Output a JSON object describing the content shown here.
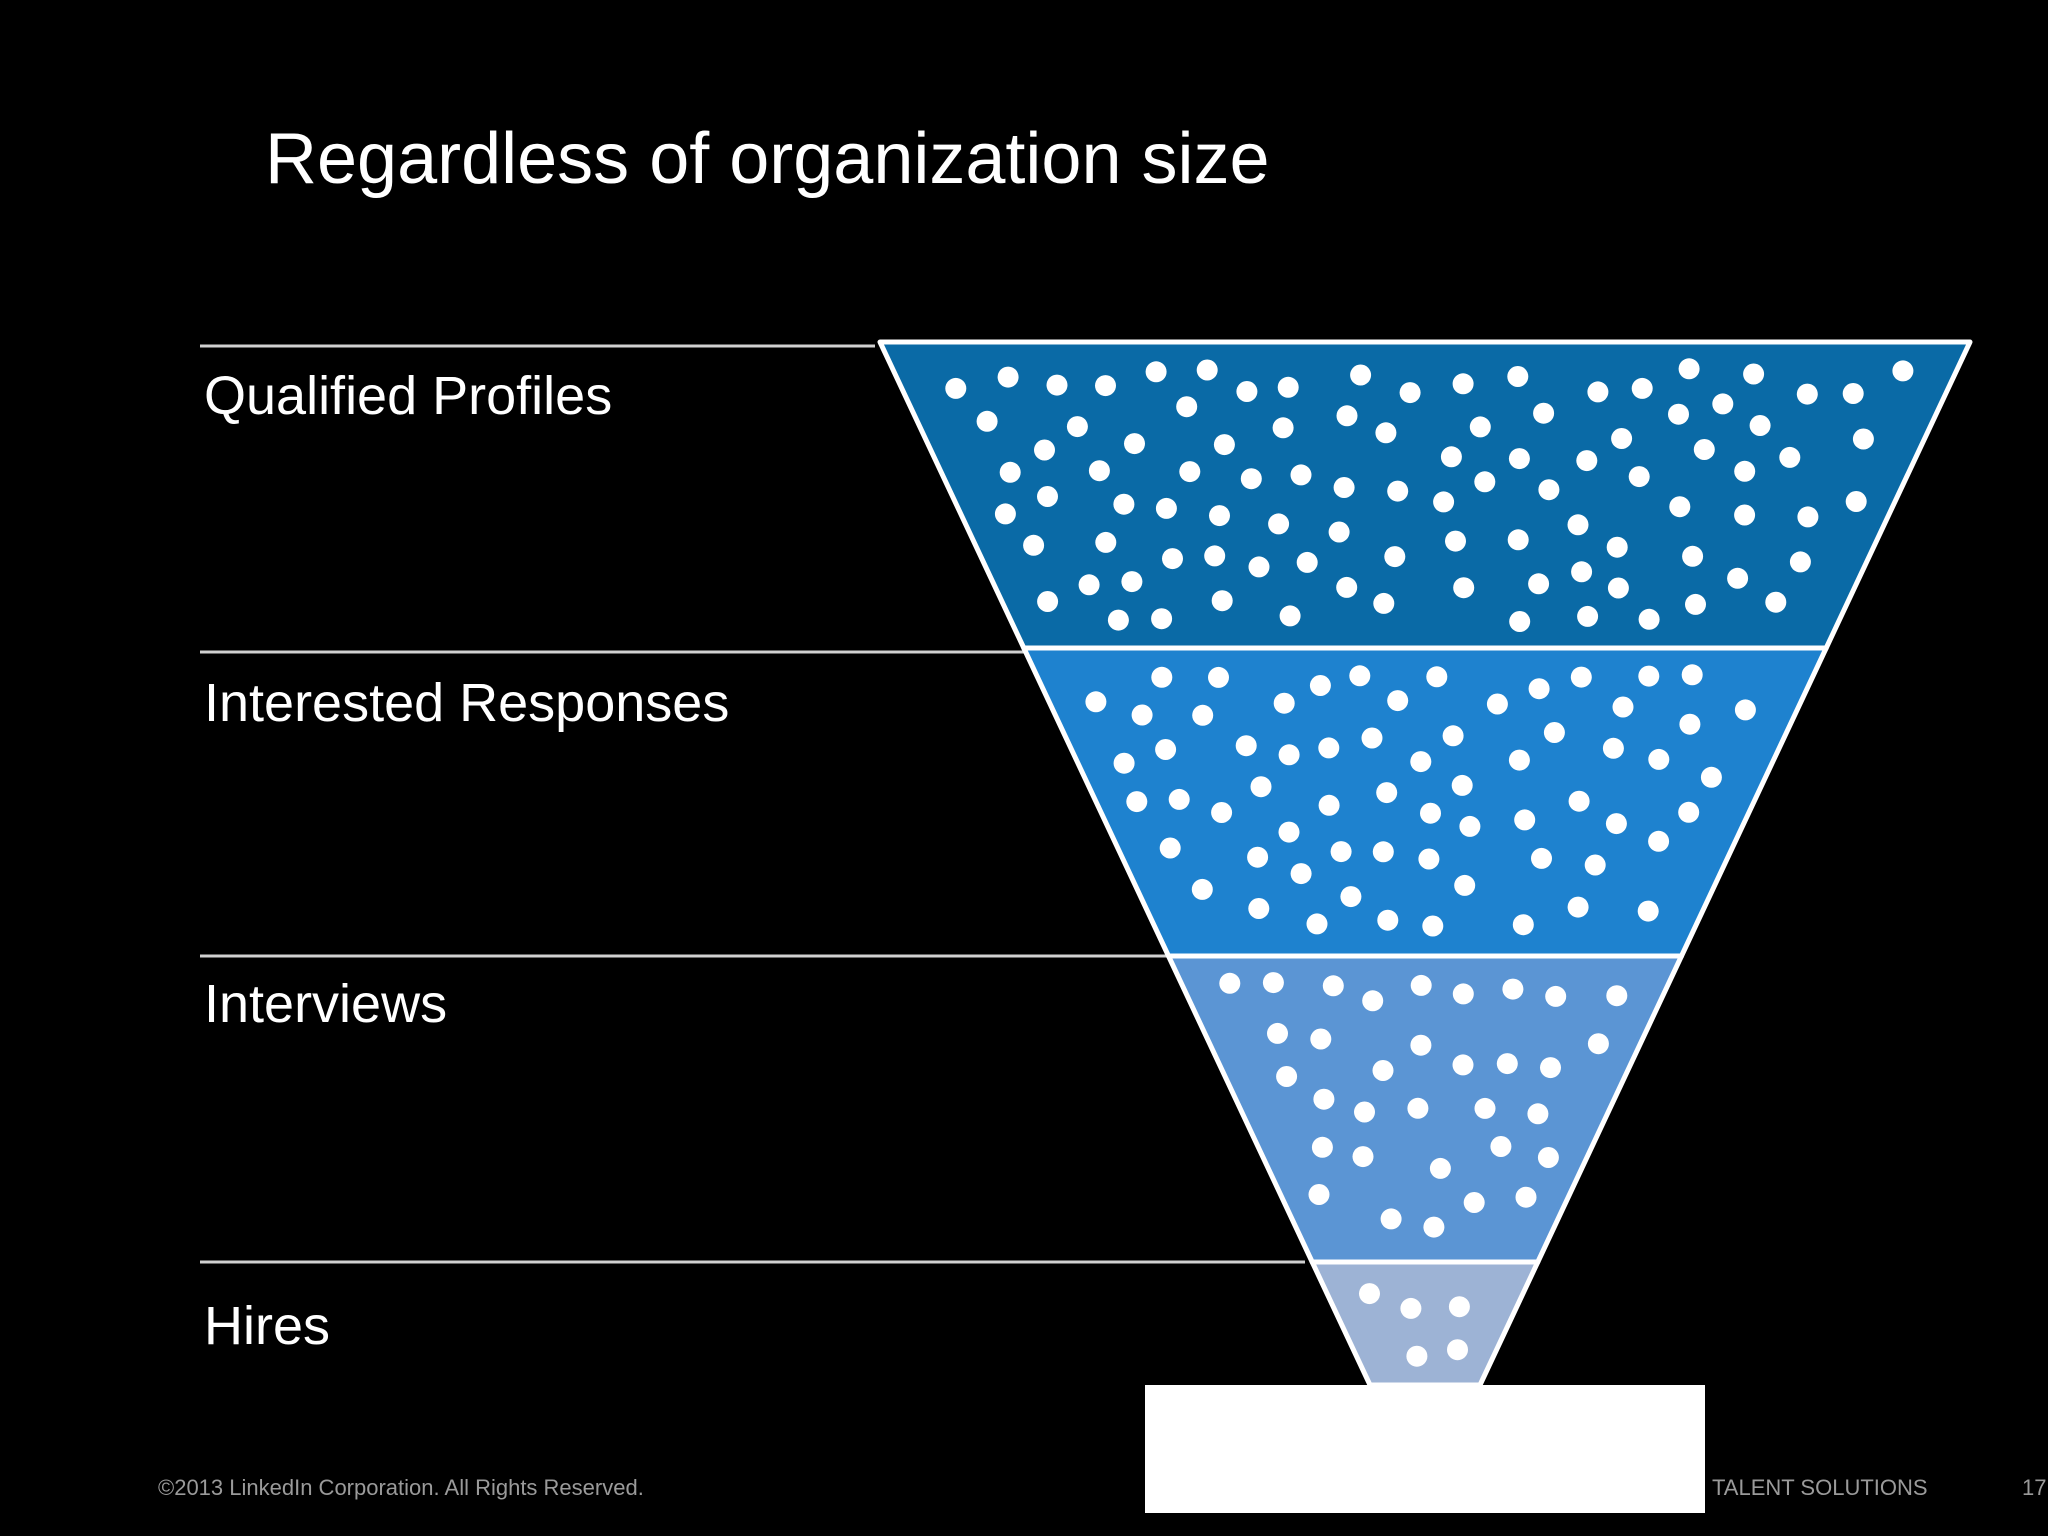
{
  "title": "Regardless of organization size",
  "stages": [
    {
      "label": "Qualified Profiles",
      "color": "#0a6aa6",
      "dots": 95
    },
    {
      "label": "Interested Responses",
      "color": "#1e82cf",
      "dots": 64
    },
    {
      "label": "Interviews",
      "color": "#5b95d4",
      "dots": 33
    },
    {
      "label": "Hires",
      "color": "#9db3d5",
      "dots": 8
    }
  ],
  "footer": {
    "copyright": "©2013 LinkedIn Corporation. All Rights Reserved.",
    "brand": "TALENT SOLUTIONS",
    "page": "17"
  },
  "colors": {
    "background": "#000000",
    "outline": "#ffffff",
    "dot": "#ffffff",
    "divider": "#d0d0d0"
  }
}
